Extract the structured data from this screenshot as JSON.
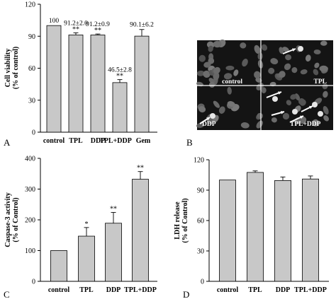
{
  "panel_letters": {
    "a": "A",
    "b": "B",
    "c": "C",
    "d": "D"
  },
  "chart_data": [
    {
      "id": "A",
      "type": "bar",
      "ylabel": "Cell viability\n(% of control)",
      "ylim": [
        0,
        120
      ],
      "yticks": [
        0,
        30,
        60,
        90,
        120
      ],
      "categories": [
        "control",
        "TPL",
        "DDP",
        "TPL+DDP",
        "Gem"
      ],
      "values": [
        100,
        91.2,
        91.2,
        46.5,
        90.1
      ],
      "errors": [
        0,
        2.0,
        0.9,
        2.8,
        6.2
      ],
      "value_labels": [
        "100",
        "91.2±2.0",
        "91.2±0.9",
        "46.5±2.8",
        "90.1±6.2"
      ],
      "significance": [
        "",
        "**",
        "**",
        "**",
        ""
      ],
      "grid": false
    },
    {
      "id": "C",
      "type": "bar",
      "ylabel": "Caspase-3 activity\n(% of Control)",
      "ylim": [
        0,
        400
      ],
      "yticks": [
        0,
        100,
        200,
        300,
        400
      ],
      "categories": [
        "control",
        "TPL",
        "DDP",
        "TPL+DDP"
      ],
      "values": [
        100,
        147,
        189,
        332
      ],
      "errors": [
        0,
        28,
        35,
        25
      ],
      "significance": [
        "",
        "*",
        "**",
        "**"
      ],
      "grid": false
    },
    {
      "id": "D",
      "type": "bar",
      "ylabel": "LDH release\n(% of Control)",
      "ylim": [
        0,
        120
      ],
      "yticks": [
        0,
        30,
        60,
        90,
        120
      ],
      "categories": [
        "control",
        "TPL",
        "DDP",
        "TPL+DDP"
      ],
      "values": [
        100,
        107.5,
        99.5,
        101
      ],
      "errors": [
        0,
        1.5,
        3.5,
        3.0
      ],
      "significance": [
        "",
        "",
        "",
        ""
      ],
      "grid": false
    }
  ],
  "micrograph": {
    "quadrant_labels": [
      "control",
      "TPL",
      "DDP",
      "TPL+DDP"
    ],
    "background": "#141414",
    "nucleus_color": "#6a6a6a",
    "bright_nucleus_color": "#e6e6e6",
    "arrow_color": "#ffffff",
    "divider_color": "#ffffff"
  },
  "colors": {
    "bar_fill": "#c8c8c8",
    "bar_stroke": "#000000",
    "axis": "#000000"
  }
}
